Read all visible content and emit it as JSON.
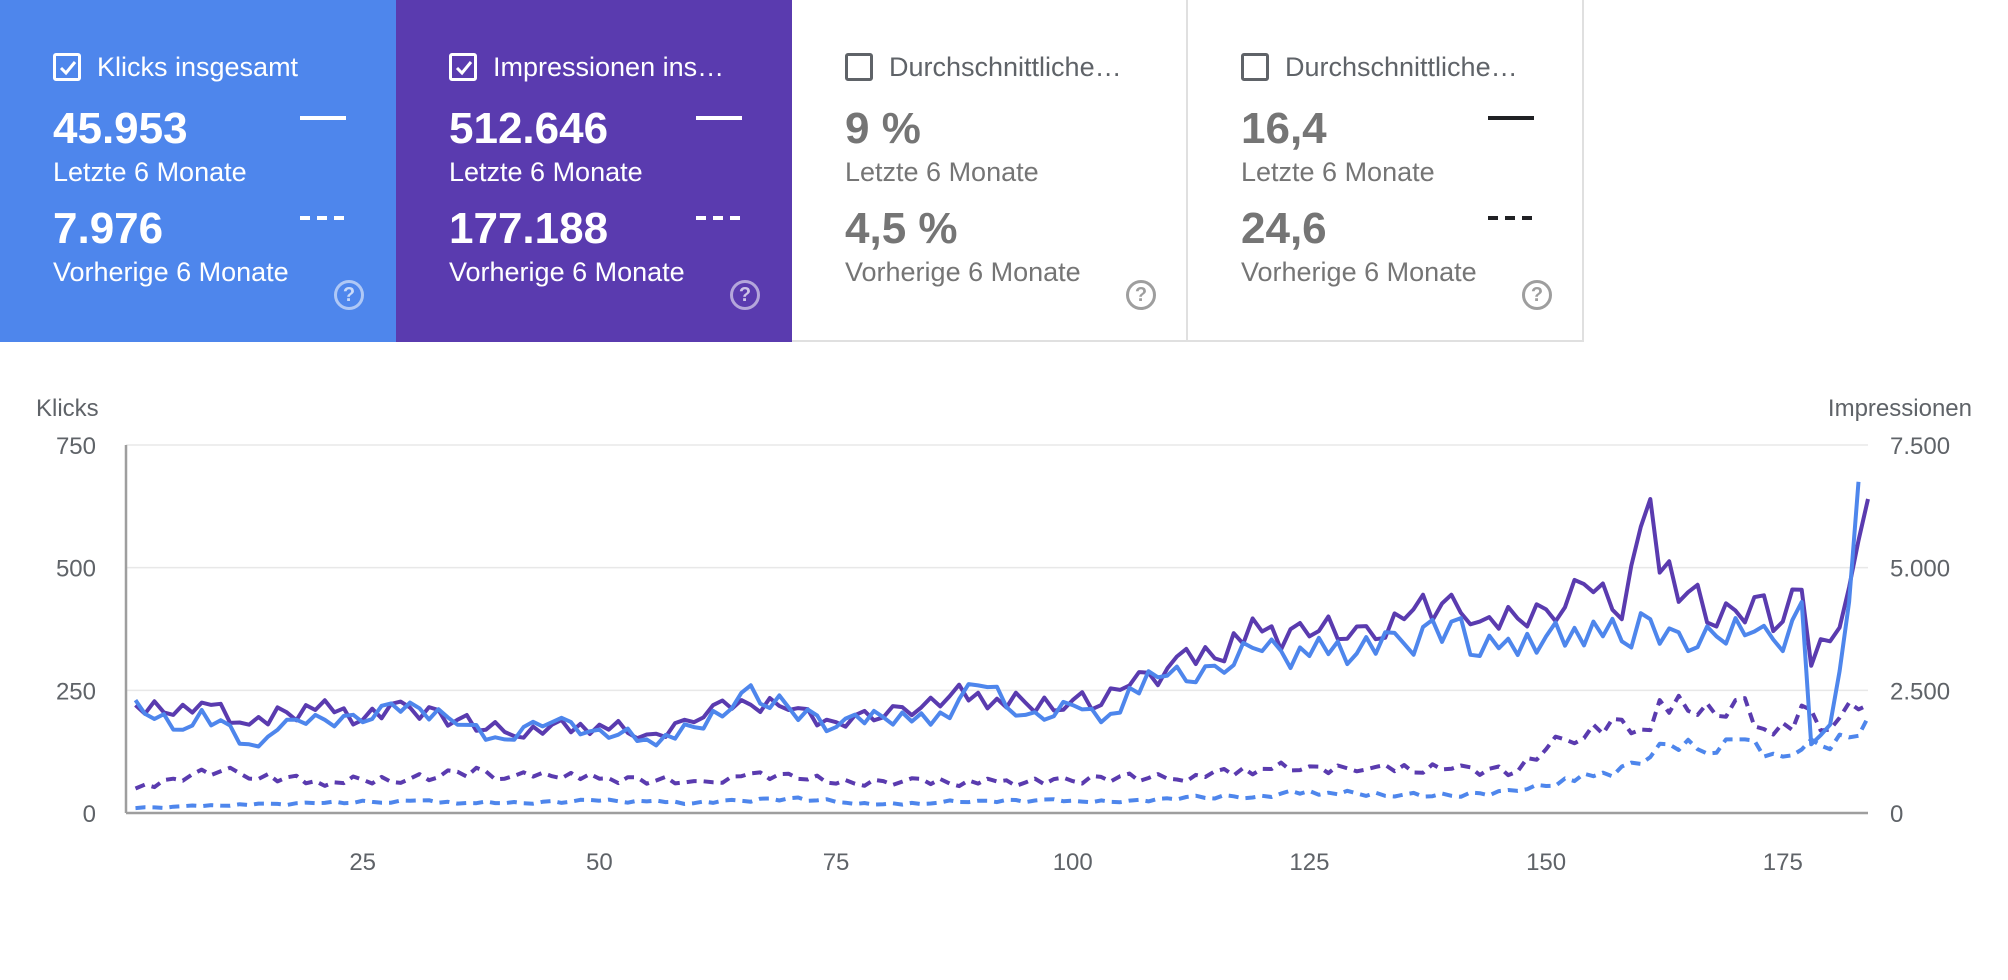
{
  "cards": [
    {
      "title": "Klicks insgesamt",
      "checked": true,
      "value_current": "45.953",
      "label_current": "Letzte 6 Monate",
      "value_previous": "7.976",
      "label_previous": "Vorherige 6 Monate",
      "bg": "#4e86ec",
      "help": "?"
    },
    {
      "title": "Impressionen ins…",
      "checked": true,
      "value_current": "512.646",
      "label_current": "Letzte 6 Monate",
      "value_previous": "177.188",
      "label_previous": "Vorherige 6 Monate",
      "bg": "#5a3baf",
      "help": "?"
    },
    {
      "title": "Durchschnittliche…",
      "checked": false,
      "value_current": "9 %",
      "label_current": "Letzte 6 Monate",
      "value_previous": "4,5 %",
      "label_previous": "Vorherige 6 Monate",
      "bg": "#ffffff",
      "help": "?"
    },
    {
      "title": "Durchschnittliche…",
      "checked": false,
      "value_current": "16,4",
      "label_current": "Letzte 6 Monate",
      "value_previous": "24,6",
      "label_previous": "Vorherige 6 Monate",
      "bg": "#ffffff",
      "help": "?"
    }
  ],
  "chart_data": {
    "type": "line",
    "ylabel_left": "Klicks",
    "ylabel_right": "Impressionen",
    "yticks_left": [
      "750",
      "500",
      "250",
      "0"
    ],
    "yticks_right": [
      "7.500",
      "5.000",
      "2.500",
      "0"
    ],
    "ylim_left": [
      0,
      750
    ],
    "ylim_right": [
      0,
      7500
    ],
    "xticks": [
      "25",
      "50",
      "75",
      "100",
      "125",
      "150",
      "175"
    ],
    "xtick_values": [
      25,
      50,
      75,
      100,
      125,
      150,
      175
    ],
    "xlim": [
      0,
      184
    ],
    "grid": true,
    "colors": {
      "klicks": "#4e86ec",
      "impressionen": "#5a3baf",
      "grid": "#e8e8e8",
      "axis": "#9e9e9e",
      "text": "#5f6368"
    },
    "series": [
      {
        "name": "Klicks insgesamt",
        "subtitle": "Letzte 6 Monate",
        "axis": "left",
        "dash": false,
        "anchors": [
          [
            1,
            230
          ],
          [
            5,
            170
          ],
          [
            8,
            210
          ],
          [
            13,
            140
          ],
          [
            17,
            190
          ],
          [
            20,
            200
          ],
          [
            25,
            185
          ],
          [
            30,
            225
          ],
          [
            35,
            180
          ],
          [
            40,
            150
          ],
          [
            45,
            185
          ],
          [
            50,
            170
          ],
          [
            55,
            150
          ],
          [
            60,
            175
          ],
          [
            65,
            245
          ],
          [
            70,
            215
          ],
          [
            75,
            175
          ],
          [
            80,
            195
          ],
          [
            85,
            180
          ],
          [
            90,
            260
          ],
          [
            95,
            200
          ],
          [
            100,
            220
          ],
          [
            103,
            185
          ],
          [
            106,
            255
          ],
          [
            110,
            280
          ],
          [
            115,
            300
          ],
          [
            120,
            330
          ],
          [
            125,
            320
          ],
          [
            130,
            325
          ],
          [
            135,
            345
          ],
          [
            140,
            390
          ],
          [
            143,
            320
          ],
          [
            146,
            355
          ],
          [
            150,
            360
          ],
          [
            155,
            390
          ],
          [
            158,
            350
          ],
          [
            161,
            395
          ],
          [
            165,
            330
          ],
          [
            168,
            360
          ],
          [
            172,
            370
          ],
          [
            175,
            330
          ],
          [
            177,
            430
          ],
          [
            178,
            140
          ],
          [
            180,
            180
          ],
          [
            182,
            430
          ],
          [
            183,
            675
          ]
        ]
      },
      {
        "name": "Impressionen insgesamt",
        "subtitle": "Letzte 6 Monate",
        "axis": "right",
        "dash": false,
        "anchors": [
          [
            1,
            2200
          ],
          [
            5,
            2000
          ],
          [
            8,
            2250
          ],
          [
            13,
            1800
          ],
          [
            17,
            2050
          ],
          [
            20,
            2100
          ],
          [
            25,
            1900
          ],
          [
            30,
            2150
          ],
          [
            35,
            1900
          ],
          [
            40,
            1650
          ],
          [
            45,
            1800
          ],
          [
            50,
            1800
          ],
          [
            55,
            1600
          ],
          [
            60,
            1850
          ],
          [
            65,
            2300
          ],
          [
            70,
            2100
          ],
          [
            75,
            1850
          ],
          [
            80,
            1950
          ],
          [
            85,
            2350
          ],
          [
            90,
            2450
          ],
          [
            95,
            2250
          ],
          [
            100,
            2300
          ],
          [
            103,
            2200
          ],
          [
            106,
            2600
          ],
          [
            110,
            2950
          ],
          [
            115,
            3150
          ],
          [
            120,
            3700
          ],
          [
            125,
            3600
          ],
          [
            130,
            3800
          ],
          [
            135,
            3950
          ],
          [
            140,
            4450
          ],
          [
            143,
            3900
          ],
          [
            146,
            4200
          ],
          [
            150,
            4150
          ],
          [
            155,
            4500
          ],
          [
            158,
            3950
          ],
          [
            161,
            6400
          ],
          [
            162,
            4900
          ],
          [
            165,
            4500
          ],
          [
            168,
            3800
          ],
          [
            172,
            4400
          ],
          [
            175,
            3900
          ],
          [
            177,
            4550
          ],
          [
            178,
            3000
          ],
          [
            180,
            3500
          ],
          [
            182,
            4600
          ],
          [
            184,
            6400
          ]
        ]
      },
      {
        "name": "Klicks insgesamt",
        "subtitle": "Vorherige 6 Monate",
        "axis": "left",
        "dash": true,
        "anchors": [
          [
            1,
            10
          ],
          [
            10,
            15
          ],
          [
            20,
            20
          ],
          [
            30,
            25
          ],
          [
            40,
            20
          ],
          [
            50,
            25
          ],
          [
            60,
            20
          ],
          [
            70,
            30
          ],
          [
            80,
            18
          ],
          [
            90,
            25
          ],
          [
            100,
            25
          ],
          [
            105,
            22
          ],
          [
            110,
            30
          ],
          [
            120,
            35
          ],
          [
            125,
            45
          ],
          [
            130,
            40
          ],
          [
            140,
            35
          ],
          [
            147,
            45
          ],
          [
            150,
            55
          ],
          [
            155,
            75
          ],
          [
            160,
            100
          ],
          [
            163,
            140
          ],
          [
            166,
            130
          ],
          [
            170,
            150
          ],
          [
            175,
            115
          ],
          [
            178,
            150
          ],
          [
            180,
            130
          ],
          [
            184,
            195
          ]
        ]
      },
      {
        "name": "Impressionen insgesamt",
        "subtitle": "Vorherige 6 Monate",
        "axis": "right",
        "dash": true,
        "anchors": [
          [
            1,
            500
          ],
          [
            5,
            700
          ],
          [
            10,
            850
          ],
          [
            20,
            650
          ],
          [
            30,
            700
          ],
          [
            38,
            850
          ],
          [
            40,
            700
          ],
          [
            45,
            750
          ],
          [
            50,
            700
          ],
          [
            60,
            650
          ],
          [
            65,
            750
          ],
          [
            70,
            800
          ],
          [
            75,
            600
          ],
          [
            80,
            650
          ],
          [
            90,
            600
          ],
          [
            100,
            650
          ],
          [
            105,
            750
          ],
          [
            110,
            700
          ],
          [
            115,
            850
          ],
          [
            120,
            900
          ],
          [
            125,
            950
          ],
          [
            130,
            850
          ],
          [
            140,
            900
          ],
          [
            147,
            850
          ],
          [
            150,
            1300
          ],
          [
            155,
            1800
          ],
          [
            158,
            1900
          ],
          [
            160,
            1700
          ],
          [
            162,
            2300
          ],
          [
            166,
            2000
          ],
          [
            170,
            2300
          ],
          [
            174,
            1600
          ],
          [
            178,
            2100
          ],
          [
            180,
            1700
          ],
          [
            184,
            2200
          ]
        ]
      }
    ]
  }
}
